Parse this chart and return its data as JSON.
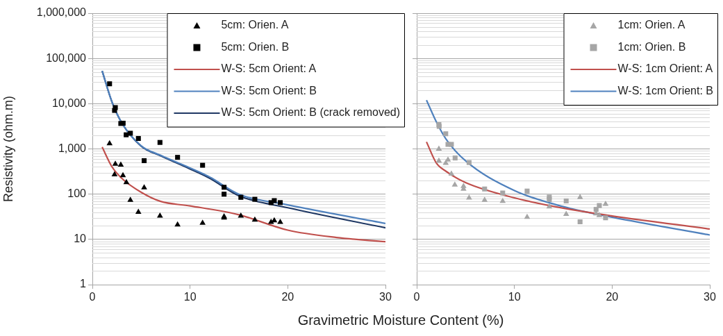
{
  "chart_data": [
    {
      "type": "scatter",
      "xlabel": "Gravimetric Moisture Content (%)",
      "ylabel": "Resistivity (ohm.m)",
      "xlim": [
        0,
        30
      ],
      "xticks": [
        0,
        10,
        20,
        30
      ],
      "ylim": [
        1,
        1000000
      ],
      "log": "y",
      "grid": "y",
      "legend": "top right",
      "yticks": [
        1,
        10,
        100,
        {
          "value": 1000,
          "label": "1,000"
        },
        {
          "value": 10000,
          "label": "10,000"
        },
        {
          "value": 100000,
          "label": "100,000"
        },
        {
          "value": 1000000,
          "label": "1,000,000"
        }
      ],
      "series": [
        {
          "name": "5cm: Orien. A",
          "marker": "triangle",
          "color": "#000000",
          "x": [
            1.76,
            2.35,
            2.91,
            2.27,
            3.13,
            3.48,
            5.3,
            3.89,
            4.71,
            6.92,
            8.72,
            11.28,
            13.48,
            13.48,
            15.2,
            16.63,
            18.29,
            18.62,
            19.23
          ],
          "values": [
            1310,
            465,
            445,
            270,
            258,
            182,
            140,
            74,
            40,
            33,
            21,
            23,
            32,
            30,
            33,
            27,
            24,
            26,
            24
          ]
        },
        {
          "name": "5cm: Orien. B",
          "marker": "square",
          "color": "#000000",
          "x": [
            1.76,
            2.35,
            2.27,
            2.91,
            3.15,
            3.46,
            3.89,
            4.71,
            6.92,
            5.3,
            8.72,
            11.28,
            13.48,
            13.48,
            15.2,
            16.63,
            18.29,
            18.62,
            19.23
          ],
          "values": [
            27500,
            8200,
            7100,
            3650,
            3700,
            2050,
            2220,
            1700,
            1390,
            550,
            650,
            435,
            142,
            100,
            85,
            77,
            65,
            72,
            65
          ]
        },
        {
          "name": "W-S: 5cm Orient: A",
          "type": "line",
          "marker": "none",
          "color": "#c0504d",
          "x": [
            1,
            2,
            3,
            5,
            7,
            10,
            15,
            20,
            25,
            30
          ],
          "values": [
            1100,
            405,
            225,
            110,
            69,
            55,
            35,
            16,
            11,
            8.9
          ]
        },
        {
          "name": "W-S: 5cm Orient: B",
          "type": "line",
          "marker": "none",
          "color": "#4f81bd",
          "x": [
            1,
            2,
            3,
            5,
            7,
            10,
            12,
            15,
            20,
            30
          ],
          "values": [
            53000,
            11000,
            3800,
            1170,
            720,
            380,
            240,
            100,
            58,
            22.5
          ]
        },
        {
          "name": "W-S: 5cm Orient: B (crack removed)",
          "type": "line",
          "marker": "none",
          "color": "#1f3864",
          "x": [
            1,
            2,
            3,
            5,
            7,
            10,
            12,
            15,
            20,
            30
          ],
          "values": [
            53000,
            11000,
            3800,
            1150,
            700,
            360,
            225,
            92,
            50,
            18
          ]
        }
      ]
    },
    {
      "type": "scatter",
      "xlim": [
        0,
        30
      ],
      "xticks": [
        0,
        10,
        20,
        30
      ],
      "ylim": [
        1,
        1000000
      ],
      "log": "y",
      "grid": "y",
      "legend": "top right",
      "tick_labels": "x",
      "yticks": [
        {
          "value": 1,
          "label": null
        },
        {
          "value": 10,
          "label": null
        },
        {
          "value": 100,
          "label": null
        },
        {
          "value": 1000,
          "label": null
        },
        {
          "value": 10000,
          "label": null
        },
        {
          "value": 100000,
          "label": null
        },
        {
          "value": 1000000,
          "label": null
        }
      ],
      "series": [
        {
          "name": "1cm: Orien. A",
          "marker": "triangle",
          "color": "#a6a6a6",
          "x": [
            2.27,
            2.27,
            2.97,
            3.2,
            3.55,
            3.9,
            4.79,
            4.79,
            5.36,
            6.95,
            8.8,
            11.3,
            13.57,
            15.3,
            16.72,
            18.36,
            18.69,
            19.33
          ],
          "values": [
            1000,
            545,
            485,
            575,
            280,
            160,
            150,
            130,
            83,
            74,
            70,
            31,
            53,
            36,
            85,
            37,
            34,
            60
          ]
        },
        {
          "name": "1cm: Orien. B",
          "marker": "square",
          "color": "#a6a6a6",
          "x": [
            2.27,
            2.3,
            2.97,
            3.2,
            3.55,
            3.93,
            5.36,
            6.95,
            8.8,
            11.3,
            13.57,
            13.57,
            15.3,
            16.72,
            18.36,
            18.69,
            19.33
          ],
          "values": [
            3450,
            3150,
            2160,
            1260,
            1260,
            630,
            500,
            130,
            106,
            117,
            86,
            76,
            71,
            24.5,
            46,
            56,
            30
          ]
        },
        {
          "name": "W-S: 1cm Orient: A",
          "type": "line",
          "marker": "none",
          "color": "#c0504d",
          "x": [
            1,
            2,
            3,
            5,
            10,
            15,
            20,
            30
          ],
          "values": [
            1430,
            490,
            320,
            180,
            83,
            49,
            33,
            17
          ]
        },
        {
          "name": "W-S: 1cm Orient: B",
          "type": "line",
          "marker": "none",
          "color": "#4f81bd",
          "x": [
            1,
            2,
            3,
            5,
            10,
            15,
            20,
            30
          ],
          "values": [
            12000,
            4000,
            1650,
            545,
            120,
            53,
            31,
            12.5
          ]
        }
      ]
    }
  ]
}
